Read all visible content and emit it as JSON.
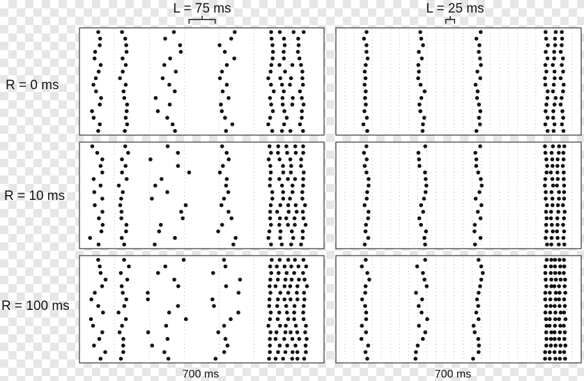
{
  "chart_data": {
    "type": "scatter",
    "description_kind": "raster",
    "columns": [
      {
        "top_label": "L = 75 ms",
        "bottom_label": "700 ms",
        "bracket_ms": 75,
        "window_ms": 700
      },
      {
        "top_label": "L = 25 ms",
        "bottom_label": "700 ms",
        "bracket_ms": 25,
        "window_ms": 700
      }
    ],
    "rows": [
      {
        "label": "R = 0 ms"
      },
      {
        "label": "R = 10 ms"
      },
      {
        "label": "R = 100 ms"
      }
    ],
    "trials_per_panel": 16,
    "marker_color": "#111111",
    "gridline_color": "#9a9a9a",
    "panel_border_color": "#333333"
  }
}
